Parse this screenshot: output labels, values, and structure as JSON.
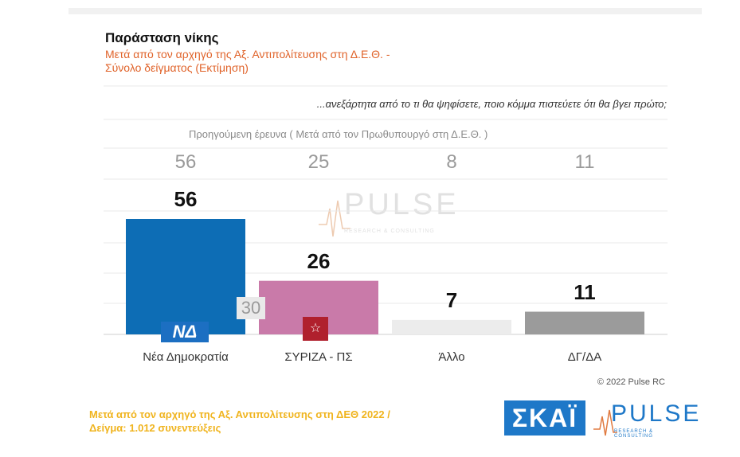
{
  "header": {
    "title": "Παράσταση νίκης",
    "subtitle_line1": "Μετά από τον αρχηγό της Αξ. Αντιπολίτευσης στη Δ.Ε.Θ. -",
    "subtitle_line2": "Σύνολο δείγματος  (Εκτίμηση)",
    "question": "...ανεξάρτητα από το τι θα ψηφίσετε, ποιο κόμμα πιστεύετε ότι θα βγει πρώτο;"
  },
  "previous": {
    "label": "Προηγούμενη έρευνα  ( Μετά από τον Πρωθυπουργό στη Δ.Ε.Θ. )",
    "inside_label": "30"
  },
  "watermark": {
    "text": "PULSE",
    "sub": "RESEARCH & CONSULTING"
  },
  "logos": {
    "na": "ΝΔ",
    "syriza": "☆",
    "skai": "ΣΚΑΪ",
    "pulse": "PULSE",
    "pulse_sub": "RESEARCH & CONSULTING"
  },
  "copyright": "© 2022 Pulse RC",
  "footer": {
    "line1": "Μετά από τον αρχηγό της Αξ. Αντιπολίτευσης στη ΔΕΘ  2022  /",
    "line2": "Δείγμα:  1.012 συνεντεύξεις"
  },
  "chart_data": {
    "type": "bar",
    "categories": [
      "Νέα Δημοκρατία",
      "ΣΥΡΙΖΑ - ΠΣ",
      "Άλλο",
      "ΔΓ/ΔΑ"
    ],
    "values": [
      56,
      26,
      7,
      11
    ],
    "previous_values": [
      "56",
      "25",
      "8",
      "11"
    ],
    "colors": [
      "#0d6db5",
      "#c97aa9",
      "#ececec",
      "#9b9b9b"
    ],
    "ylim": [
      0,
      60
    ],
    "grid": true
  }
}
